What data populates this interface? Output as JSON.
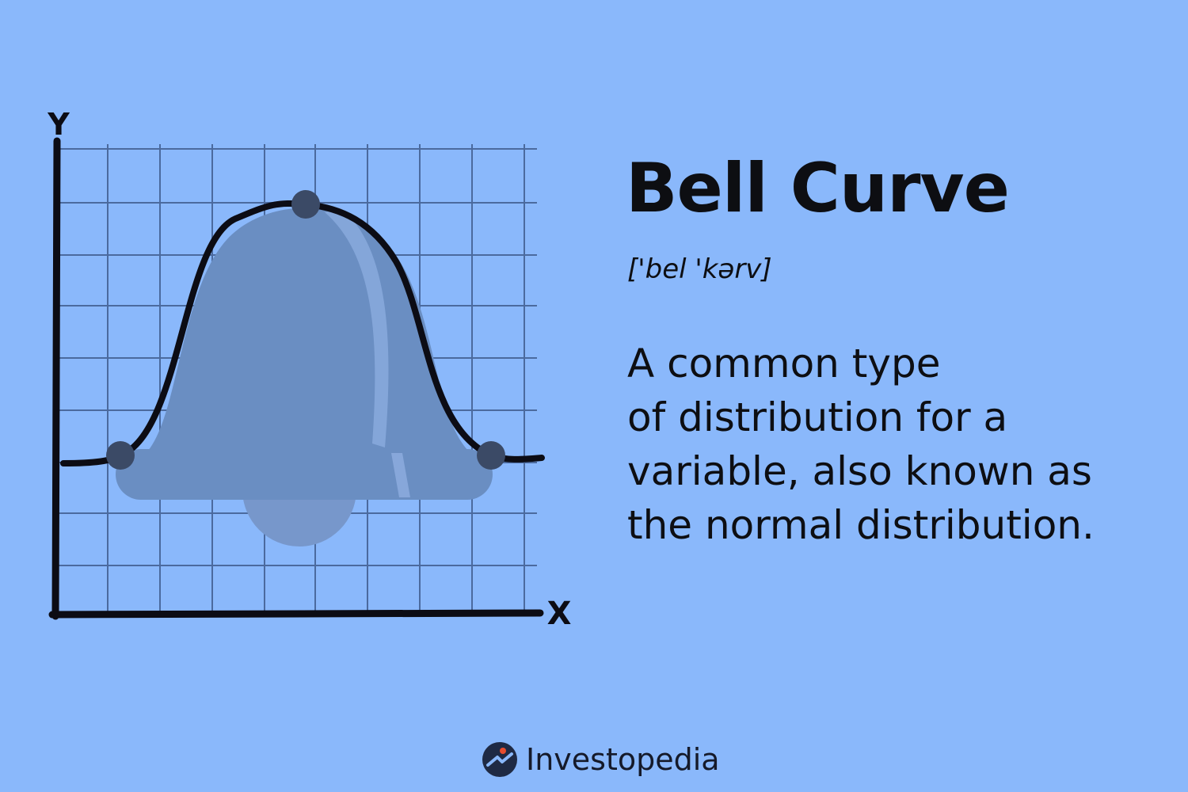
{
  "illustration": {
    "x_axis_label": "X",
    "y_axis_label": "Y",
    "icons": [
      "bell-icon"
    ]
  },
  "heading": {
    "title": "Bell Curve",
    "pronunciation": "['bel 'kərv]"
  },
  "definition_lines": [
    "A common type",
    "of distribution for a",
    "variable, also known as",
    "the normal distribution."
  ],
  "brand": {
    "name": "Investopedia",
    "icon": "investopedia-logo-icon"
  },
  "colors": {
    "background": "#8ab8fb",
    "bell": "#6a8ec2",
    "grid": "#4b6a9e",
    "ink": "#0d0e12"
  }
}
